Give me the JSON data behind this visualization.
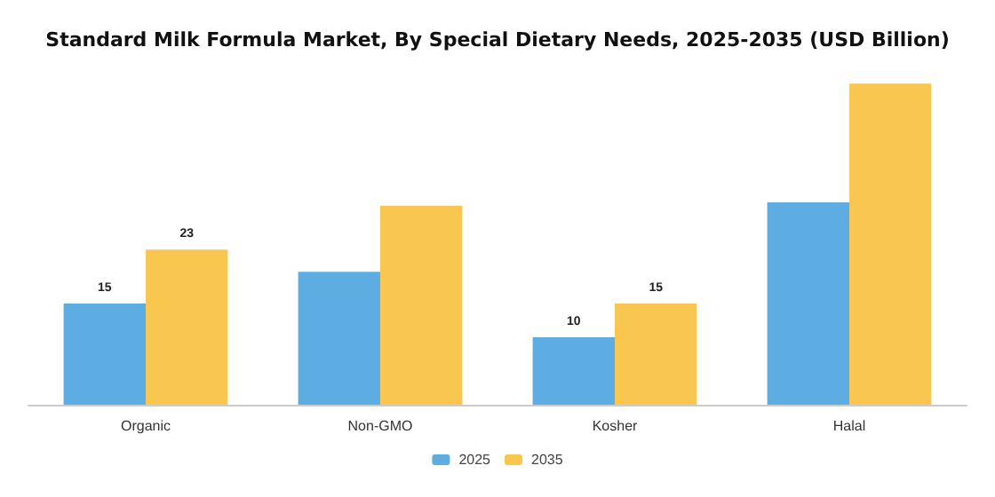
{
  "chart_data": {
    "type": "bar",
    "title": "Standard Milk Formula Market, By Special Dietary Needs, 2025-2035 (USD Billion)",
    "categories": [
      "Organic",
      "Non-GMO",
      "Kosher",
      "Halal"
    ],
    "series": [
      {
        "name": "2025",
        "color": "#5dade2",
        "values": [
          15,
          19.7,
          10,
          30
        ],
        "value_labels": [
          "15",
          null,
          "10",
          null
        ]
      },
      {
        "name": "2035",
        "color": "#f9c74f",
        "values": [
          23,
          29.5,
          15,
          47.6
        ],
        "value_labels": [
          "23",
          null,
          "15",
          null
        ]
      }
    ],
    "grid": false,
    "legend": "bottom"
  }
}
